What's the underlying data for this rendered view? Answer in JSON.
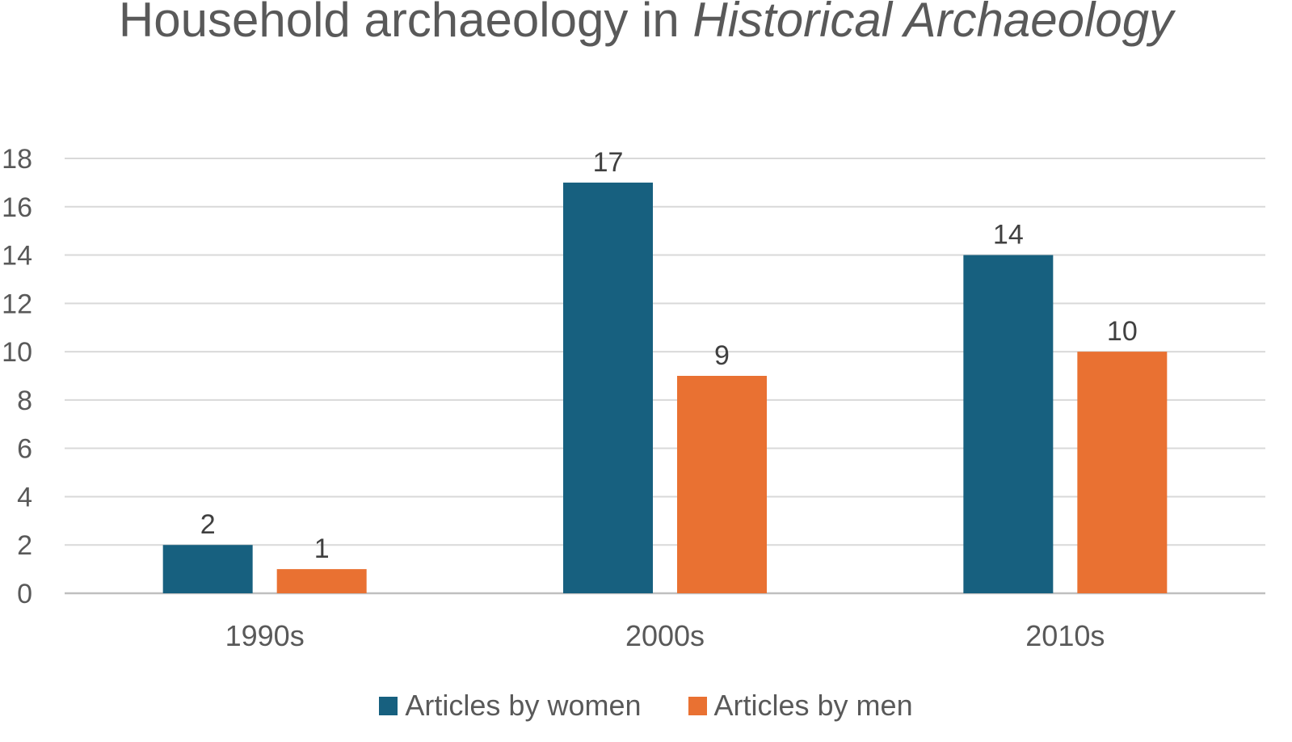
{
  "chart_data": {
    "type": "bar",
    "title": "Household archaeology in",
    "title_emphasis": "Historical Archaeology",
    "categories": [
      "1990s",
      "2000s",
      "2010s"
    ],
    "series": [
      {
        "name": "Articles by women",
        "values": [
          2,
          17,
          14
        ],
        "color": "#17607F"
      },
      {
        "name": "Articles by men",
        "values": [
          1,
          9,
          10
        ],
        "color": "#E97132"
      }
    ],
    "ylim": [
      0,
      18
    ],
    "yticks": [
      "0",
      "2",
      "4",
      "6",
      "8",
      "10",
      "12",
      "14",
      "16",
      "18"
    ],
    "grid": true,
    "legend_position": "bottom",
    "data_labels": true
  }
}
